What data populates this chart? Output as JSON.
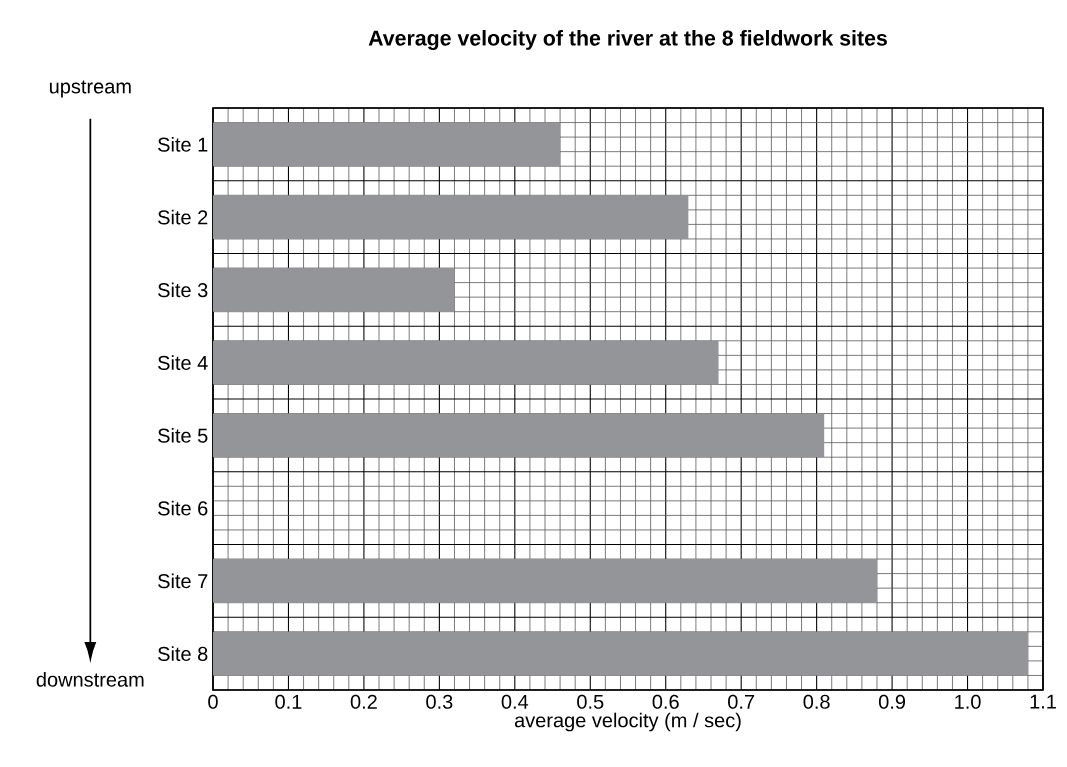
{
  "chart_data": {
    "type": "bar",
    "orientation": "horizontal",
    "title": "Average velocity of the river at the 8 fieldwork sites",
    "xlabel": "average velocity (m / sec)",
    "categories": [
      "Site 1",
      "Site 2",
      "Site 3",
      "Site 4",
      "Site 5",
      "Site 6",
      "Site 7",
      "Site 8"
    ],
    "values": [
      0.46,
      0.63,
      0.32,
      0.67,
      0.81,
      null,
      0.88,
      1.08
    ],
    "color": "#939598",
    "xlim": [
      0,
      1.1
    ],
    "xticks": [
      0,
      0.1,
      0.2,
      0.3,
      0.4,
      0.5,
      0.6,
      0.7,
      0.8,
      0.9,
      {
        "value": 1.0,
        "label": "1.0"
      },
      1.1
    ],
    "grid": true,
    "annotations": [
      "upstream",
      "downstream"
    ]
  }
}
